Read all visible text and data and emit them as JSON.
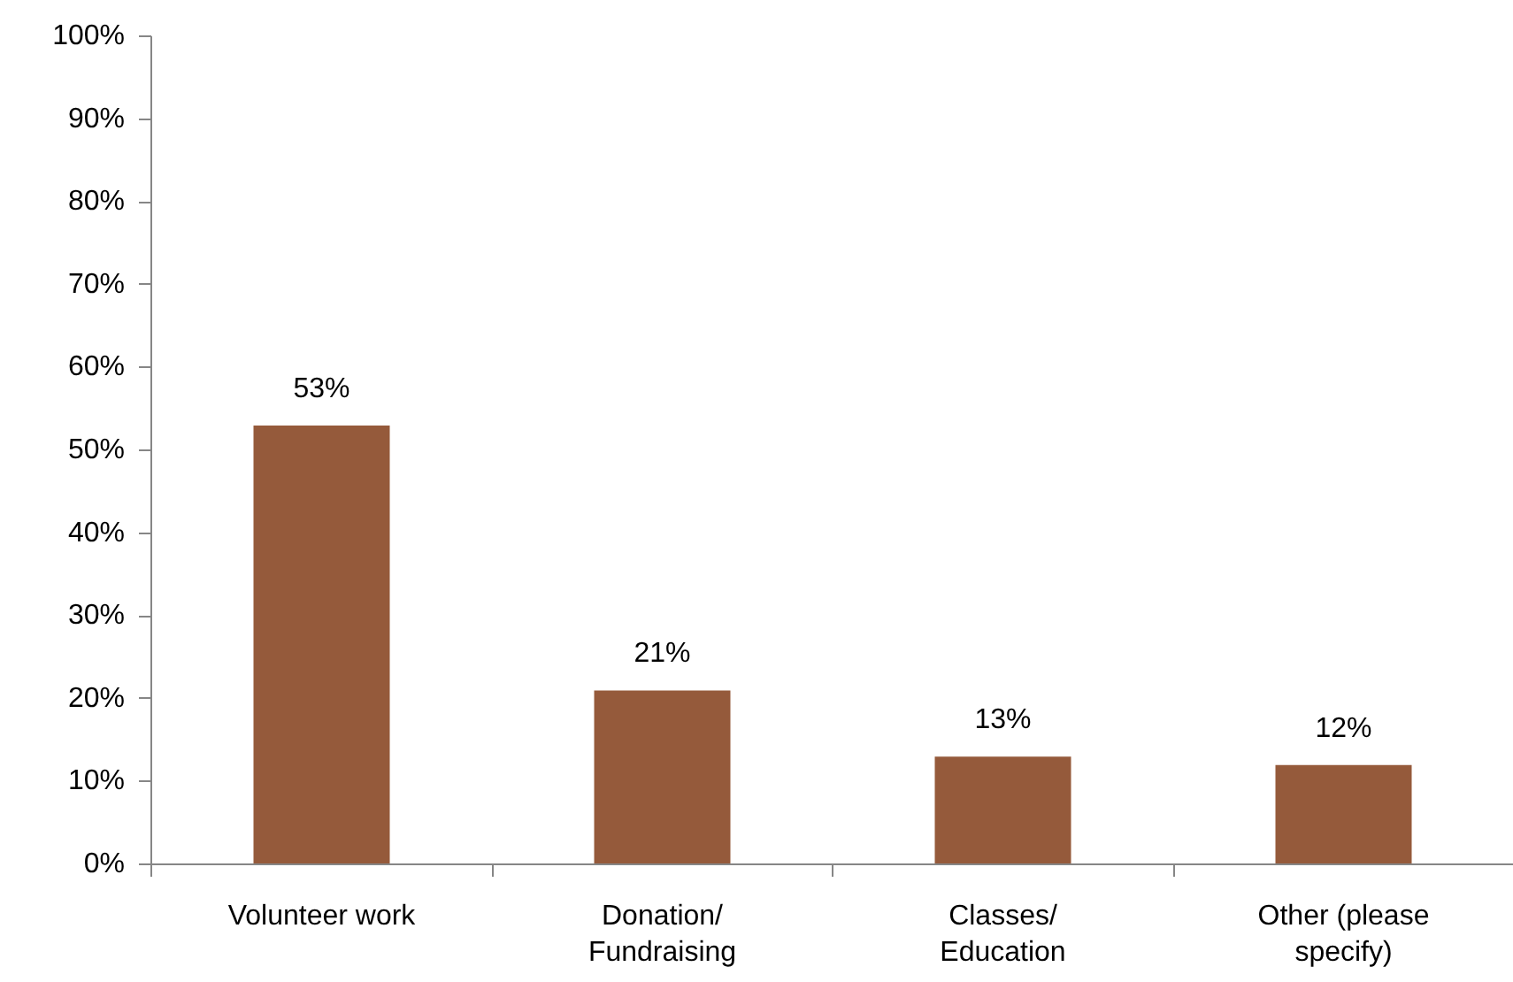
{
  "chart_data": {
    "type": "bar",
    "categories": [
      "Volunteer work",
      "Donation/\nFundraising",
      "Classes/\nEducation",
      "Other (please\nspecify)"
    ],
    "values": [
      53,
      21,
      13,
      12
    ],
    "value_labels": [
      "53%",
      "21%",
      "13%",
      "12%"
    ],
    "color": "#955a3b",
    "ylim": [
      0,
      100
    ],
    "yticks": [
      {
        "value": 0,
        "label": "0%"
      },
      {
        "value": 10,
        "label": "10%"
      },
      {
        "value": 20,
        "label": "20%"
      },
      {
        "value": 30,
        "label": "30%"
      },
      {
        "value": 40,
        "label": "40%"
      },
      {
        "value": 50,
        "label": "50%"
      },
      {
        "value": 60,
        "label": "60%"
      },
      {
        "value": 70,
        "label": "70%"
      },
      {
        "value": 80,
        "label": "80%"
      },
      {
        "value": 90,
        "label": "90%"
      },
      {
        "value": 100,
        "label": "100%"
      }
    ],
    "grid": false
  }
}
